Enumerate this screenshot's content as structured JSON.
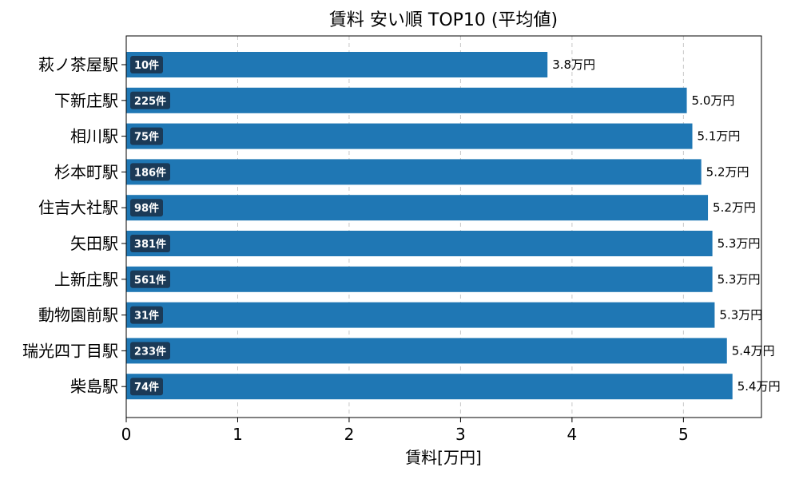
{
  "chart_data": {
    "type": "bar",
    "orientation": "horizontal",
    "title": "賃料 安い順 TOP10 (平均値)",
    "xlabel": "賃料[万円]",
    "ylabel": "",
    "xlim": [
      0,
      5.7
    ],
    "xticks": [
      0,
      1,
      2,
      3,
      4,
      5
    ],
    "grid": "x-dashed",
    "bar_color": "#1f77b4",
    "badge_color": "#1b3a57",
    "categories": [
      "萩ノ茶屋駅",
      "下新庄駅",
      "相川駅",
      "杉本町駅",
      "住吉大社駅",
      "矢田駅",
      "上新庄駅",
      "動物園前駅",
      "瑞光四丁目駅",
      "柴島駅"
    ],
    "values": [
      3.78,
      5.03,
      5.08,
      5.16,
      5.22,
      5.26,
      5.26,
      5.28,
      5.39,
      5.44
    ],
    "value_labels": [
      "3.8万円",
      "5.0万円",
      "5.1万円",
      "5.2万円",
      "5.2万円",
      "5.3万円",
      "5.3万円",
      "5.3万円",
      "5.4万円",
      "5.4万円"
    ],
    "counts": [
      "10件",
      "225件",
      "75件",
      "186件",
      "98件",
      "381件",
      "561件",
      "31件",
      "233件",
      "74件"
    ]
  }
}
